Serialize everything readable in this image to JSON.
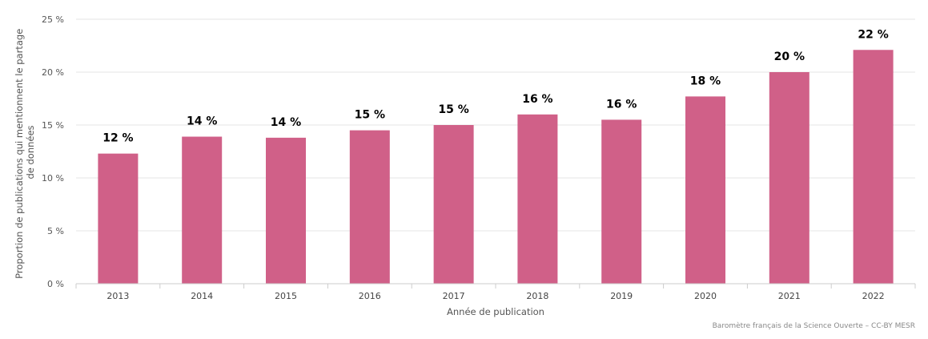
{
  "chart_data": {
    "type": "bar",
    "categories": [
      "2013",
      "2014",
      "2015",
      "2016",
      "2017",
      "2018",
      "2019",
      "2020",
      "2021",
      "2022"
    ],
    "values": [
      12.3,
      13.9,
      13.8,
      14.5,
      15.0,
      16.0,
      15.5,
      17.7,
      20.0,
      22.1
    ],
    "data_labels": [
      "12 %",
      "14 %",
      "14 %",
      "15 %",
      "15 %",
      "16 %",
      "16 %",
      "18 %",
      "20 %",
      "22 %"
    ],
    "title": "",
    "xlabel": "Année de publication",
    "ylabel_lines": [
      "Proportion de publications qui mentionnent le partage",
      "de données"
    ],
    "ylim": [
      0,
      25
    ],
    "yticks": [
      0,
      5,
      10,
      15,
      20,
      25
    ],
    "ytick_labels": [
      "0 %",
      "5 %",
      "10 %",
      "15 %",
      "20 %",
      "25 %"
    ],
    "grid": true,
    "bar_color": "#d06088",
    "credit": "Baromètre français de la Science Ouverte – CC-BY MESR"
  }
}
